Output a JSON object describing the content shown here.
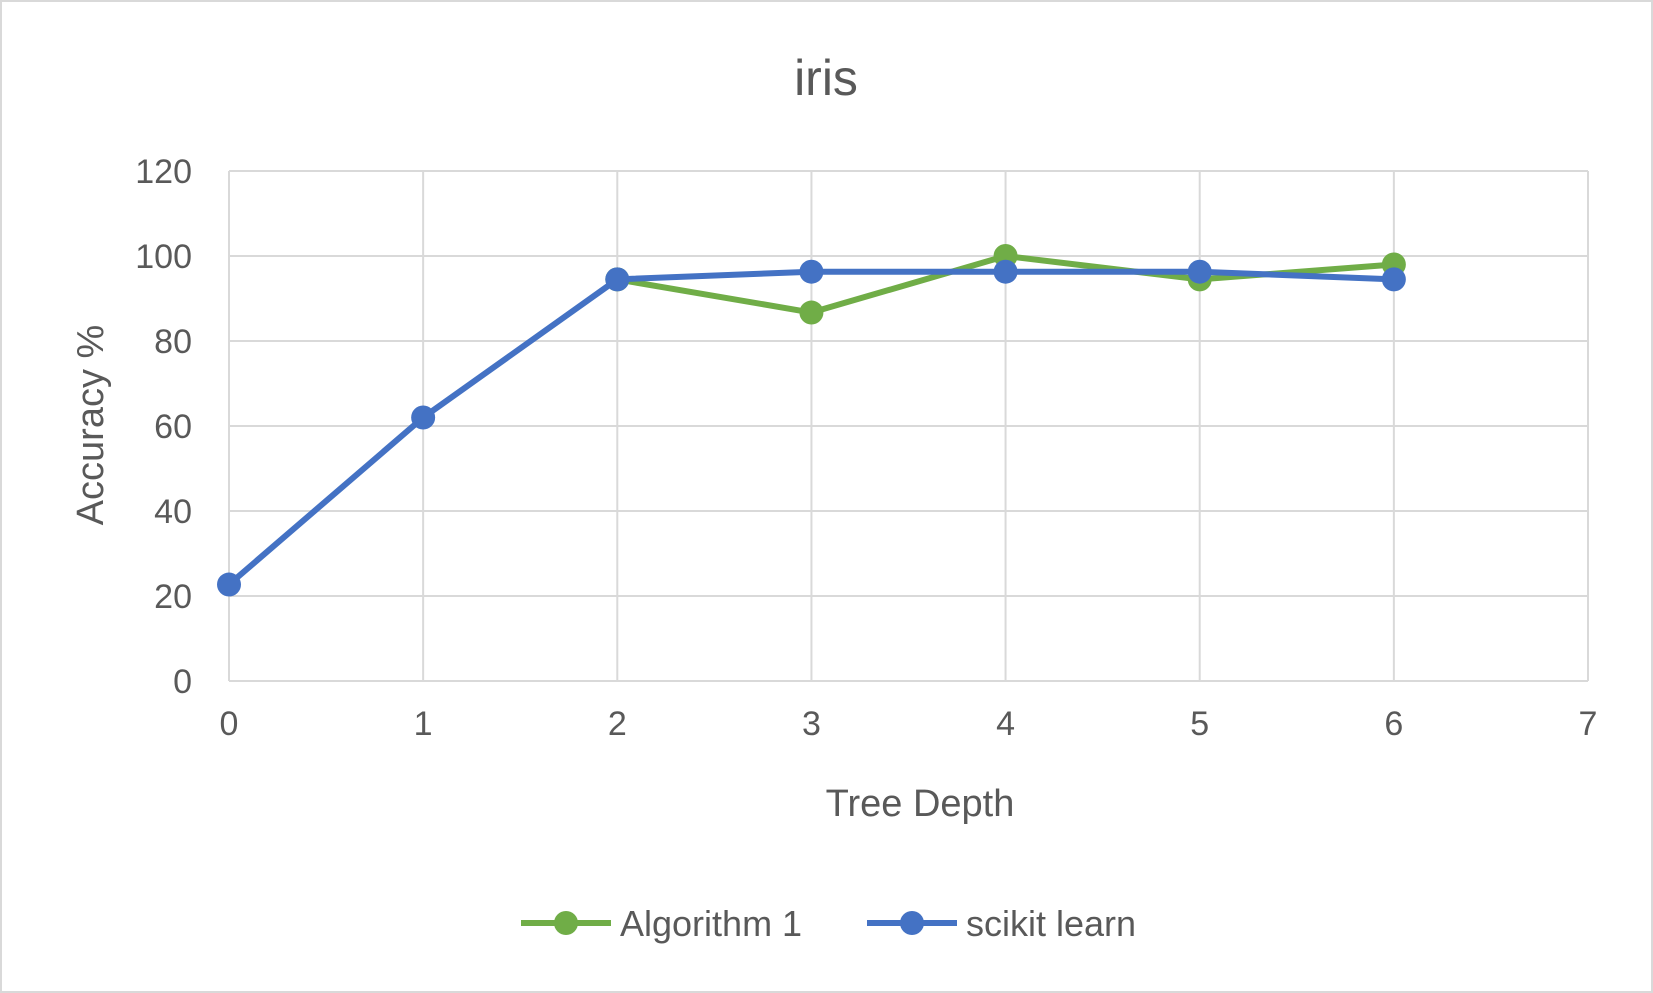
{
  "chart_data": {
    "type": "scatter",
    "title": "iris",
    "xlabel": "Tree Depth",
    "ylabel": "Accuracy %",
    "xlim": [
      0,
      7
    ],
    "ylim": [
      0,
      120
    ],
    "xticks": [
      "0",
      "1",
      "2",
      "3",
      "4",
      "5",
      "6",
      "7"
    ],
    "yticks": [
      "0",
      "20",
      "40",
      "60",
      "80",
      "100",
      "120"
    ],
    "grid": true,
    "legend_position": "bottom",
    "series": [
      {
        "name": "Algorithm 1",
        "color": "#70ad47",
        "x": [
          2,
          3,
          4,
          5,
          6
        ],
        "y": [
          94.5,
          86.7,
          100,
          94.5,
          98
        ]
      },
      {
        "name": "scikit learn",
        "color": "#4472c4",
        "x": [
          0,
          1,
          2,
          3,
          4,
          5,
          6
        ],
        "y": [
          22.7,
          62,
          94.5,
          96.3,
          96.3,
          96.3,
          94.5
        ]
      }
    ]
  }
}
